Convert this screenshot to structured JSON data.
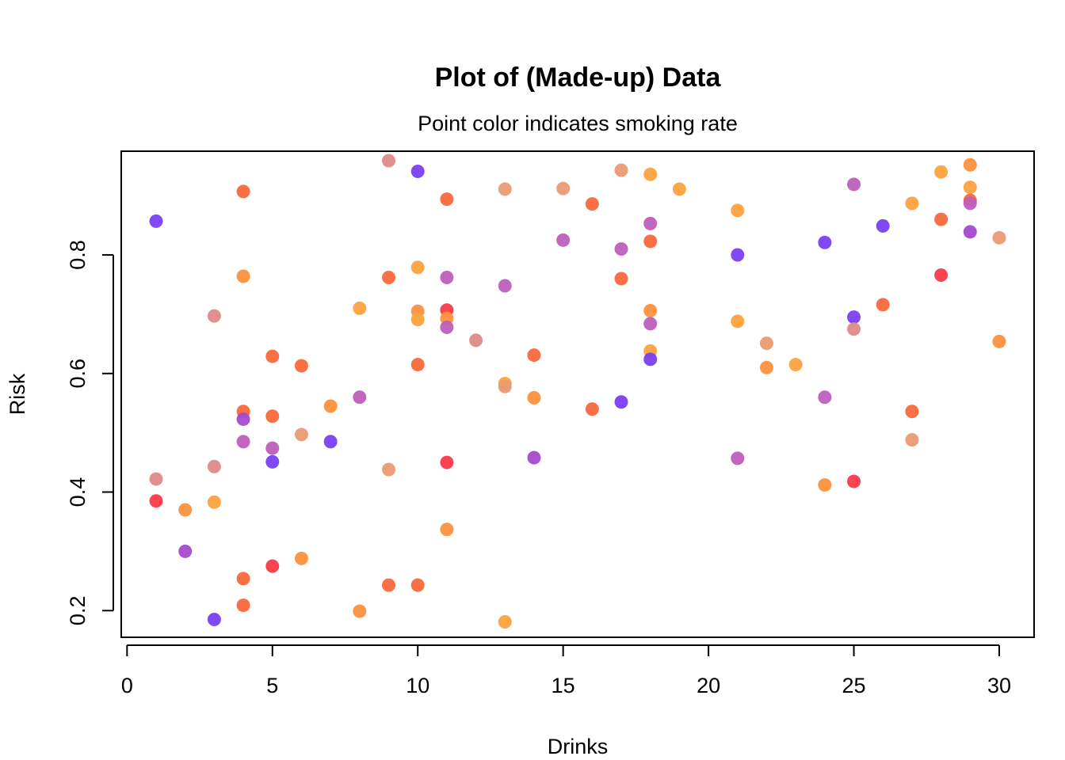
{
  "chart_data": {
    "type": "scatter",
    "title": "Plot of (Made-up) Data",
    "subtitle": "Point color indicates smoking rate",
    "xlabel": "Drinks",
    "ylabel": "Risk",
    "xlim": [
      -0.2,
      31.2
    ],
    "ylim": [
      0.155,
      0.975
    ],
    "xticks": [
      0,
      5,
      10,
      15,
      20,
      25,
      30
    ],
    "yticks": [
      0.2,
      0.4,
      0.6,
      0.8
    ],
    "grid": false,
    "legend": "none",
    "colors": {
      "purple": "#7a3ff0",
      "violet": "#a54ad0",
      "magenta": "#bf5fbc",
      "pink": "#df8a8a",
      "salmon": "#ea9a74",
      "coral": "#f9683c",
      "red": "#fb3a48",
      "orange": "#fd913e",
      "amber": "#fea23e"
    },
    "points": [
      {
        "x": 1,
        "y": 0.857,
        "c": "purple"
      },
      {
        "x": 1,
        "y": 0.422,
        "c": "pink"
      },
      {
        "x": 1,
        "y": 0.385,
        "c": "red"
      },
      {
        "x": 2,
        "y": 0.37,
        "c": "orange"
      },
      {
        "x": 2,
        "y": 0.3,
        "c": "violet"
      },
      {
        "x": 3,
        "y": 0.697,
        "c": "pink"
      },
      {
        "x": 3,
        "y": 0.443,
        "c": "pink"
      },
      {
        "x": 3,
        "y": 0.383,
        "c": "amber"
      },
      {
        "x": 3,
        "y": 0.185,
        "c": "purple"
      },
      {
        "x": 4,
        "y": 0.907,
        "c": "coral"
      },
      {
        "x": 4,
        "y": 0.764,
        "c": "orange"
      },
      {
        "x": 4,
        "y": 0.536,
        "c": "coral"
      },
      {
        "x": 4,
        "y": 0.523,
        "c": "violet"
      },
      {
        "x": 4,
        "y": 0.485,
        "c": "magenta"
      },
      {
        "x": 4,
        "y": 0.254,
        "c": "coral"
      },
      {
        "x": 4,
        "y": 0.209,
        "c": "coral"
      },
      {
        "x": 5,
        "y": 0.629,
        "c": "coral"
      },
      {
        "x": 5,
        "y": 0.528,
        "c": "coral"
      },
      {
        "x": 5,
        "y": 0.474,
        "c": "magenta"
      },
      {
        "x": 5,
        "y": 0.451,
        "c": "purple"
      },
      {
        "x": 5,
        "y": 0.275,
        "c": "red"
      },
      {
        "x": 6,
        "y": 0.613,
        "c": "coral"
      },
      {
        "x": 6,
        "y": 0.497,
        "c": "salmon"
      },
      {
        "x": 6,
        "y": 0.288,
        "c": "orange"
      },
      {
        "x": 7,
        "y": 0.545,
        "c": "orange"
      },
      {
        "x": 7,
        "y": 0.485,
        "c": "purple"
      },
      {
        "x": 8,
        "y": 0.71,
        "c": "amber"
      },
      {
        "x": 8,
        "y": 0.56,
        "c": "magenta"
      },
      {
        "x": 8,
        "y": 0.199,
        "c": "orange"
      },
      {
        "x": 9,
        "y": 0.959,
        "c": "pink"
      },
      {
        "x": 9,
        "y": 0.762,
        "c": "coral"
      },
      {
        "x": 9,
        "y": 0.438,
        "c": "salmon"
      },
      {
        "x": 9,
        "y": 0.243,
        "c": "coral"
      },
      {
        "x": 10,
        "y": 0.941,
        "c": "purple"
      },
      {
        "x": 10,
        "y": 0.779,
        "c": "amber"
      },
      {
        "x": 10,
        "y": 0.705,
        "c": "orange"
      },
      {
        "x": 10,
        "y": 0.691,
        "c": "amber"
      },
      {
        "x": 10,
        "y": 0.615,
        "c": "coral"
      },
      {
        "x": 10,
        "y": 0.243,
        "c": "coral"
      },
      {
        "x": 11,
        "y": 0.894,
        "c": "coral"
      },
      {
        "x": 11,
        "y": 0.762,
        "c": "magenta"
      },
      {
        "x": 11,
        "y": 0.707,
        "c": "red"
      },
      {
        "x": 11,
        "y": 0.693,
        "c": "orange"
      },
      {
        "x": 11,
        "y": 0.678,
        "c": "magenta"
      },
      {
        "x": 11,
        "y": 0.45,
        "c": "red"
      },
      {
        "x": 11,
        "y": 0.337,
        "c": "orange"
      },
      {
        "x": 12,
        "y": 0.656,
        "c": "pink"
      },
      {
        "x": 13,
        "y": 0.911,
        "c": "salmon"
      },
      {
        "x": 13,
        "y": 0.748,
        "c": "magenta"
      },
      {
        "x": 13,
        "y": 0.583,
        "c": "amber"
      },
      {
        "x": 13,
        "y": 0.578,
        "c": "salmon"
      },
      {
        "x": 13,
        "y": 0.181,
        "c": "amber"
      },
      {
        "x": 14,
        "y": 0.631,
        "c": "coral"
      },
      {
        "x": 14,
        "y": 0.559,
        "c": "orange"
      },
      {
        "x": 14,
        "y": 0.458,
        "c": "violet"
      },
      {
        "x": 15,
        "y": 0.912,
        "c": "salmon"
      },
      {
        "x": 15,
        "y": 0.825,
        "c": "magenta"
      },
      {
        "x": 16,
        "y": 0.886,
        "c": "coral"
      },
      {
        "x": 16,
        "y": 0.54,
        "c": "coral"
      },
      {
        "x": 17,
        "y": 0.943,
        "c": "salmon"
      },
      {
        "x": 17,
        "y": 0.81,
        "c": "magenta"
      },
      {
        "x": 17,
        "y": 0.76,
        "c": "coral"
      },
      {
        "x": 17,
        "y": 0.552,
        "c": "purple"
      },
      {
        "x": 18,
        "y": 0.936,
        "c": "amber"
      },
      {
        "x": 18,
        "y": 0.853,
        "c": "magenta"
      },
      {
        "x": 18,
        "y": 0.823,
        "c": "coral"
      },
      {
        "x": 18,
        "y": 0.706,
        "c": "orange"
      },
      {
        "x": 18,
        "y": 0.684,
        "c": "magenta"
      },
      {
        "x": 18,
        "y": 0.638,
        "c": "amber"
      },
      {
        "x": 18,
        "y": 0.624,
        "c": "purple"
      },
      {
        "x": 19,
        "y": 0.911,
        "c": "amber"
      },
      {
        "x": 21,
        "y": 0.875,
        "c": "amber"
      },
      {
        "x": 21,
        "y": 0.8,
        "c": "purple"
      },
      {
        "x": 21,
        "y": 0.688,
        "c": "amber"
      },
      {
        "x": 21,
        "y": 0.457,
        "c": "magenta"
      },
      {
        "x": 22,
        "y": 0.651,
        "c": "salmon"
      },
      {
        "x": 22,
        "y": 0.61,
        "c": "orange"
      },
      {
        "x": 23,
        "y": 0.615,
        "c": "amber"
      },
      {
        "x": 24,
        "y": 0.821,
        "c": "purple"
      },
      {
        "x": 24,
        "y": 0.56,
        "c": "magenta"
      },
      {
        "x": 24,
        "y": 0.412,
        "c": "orange"
      },
      {
        "x": 25,
        "y": 0.919,
        "c": "magenta"
      },
      {
        "x": 25,
        "y": 0.695,
        "c": "purple"
      },
      {
        "x": 25,
        "y": 0.675,
        "c": "pink"
      },
      {
        "x": 25,
        "y": 0.418,
        "c": "red"
      },
      {
        "x": 26,
        "y": 0.849,
        "c": "purple"
      },
      {
        "x": 26,
        "y": 0.716,
        "c": "coral"
      },
      {
        "x": 27,
        "y": 0.887,
        "c": "amber"
      },
      {
        "x": 27,
        "y": 0.536,
        "c": "coral"
      },
      {
        "x": 27,
        "y": 0.488,
        "c": "salmon"
      },
      {
        "x": 28,
        "y": 0.94,
        "c": "amber"
      },
      {
        "x": 28,
        "y": 0.86,
        "c": "coral"
      },
      {
        "x": 28,
        "y": 0.766,
        "c": "red"
      },
      {
        "x": 29,
        "y": 0.952,
        "c": "orange"
      },
      {
        "x": 29,
        "y": 0.914,
        "c": "amber"
      },
      {
        "x": 29,
        "y": 0.892,
        "c": "coral"
      },
      {
        "x": 29,
        "y": 0.887,
        "c": "magenta"
      },
      {
        "x": 29,
        "y": 0.839,
        "c": "violet"
      },
      {
        "x": 30,
        "y": 0.829,
        "c": "salmon"
      },
      {
        "x": 30,
        "y": 0.654,
        "c": "orange"
      }
    ]
  }
}
